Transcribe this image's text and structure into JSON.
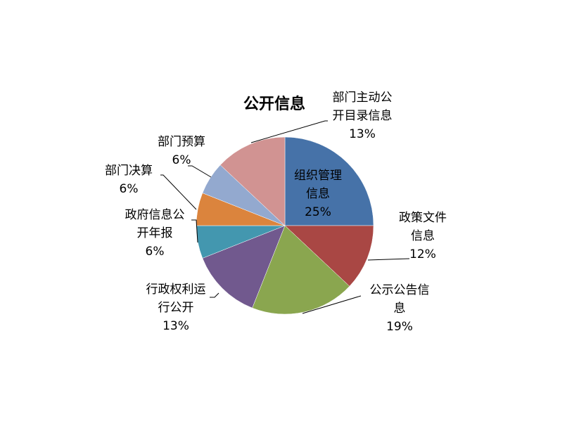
{
  "chart_data": {
    "type": "pie",
    "title": "公开信息",
    "start": "12 o'clock, clockwise",
    "slices": [
      {
        "name": "组织管理信息",
        "value": 25,
        "label": "25%",
        "color": "#4672A8"
      },
      {
        "name": "政策文件信息",
        "value": 12,
        "label": "12%",
        "color": "#A94744"
      },
      {
        "name": "公示公告信息",
        "value": 19,
        "label": "19%",
        "color": "#8AA64F"
      },
      {
        "name": "行政权利运行公开",
        "value": 13,
        "label": "13%",
        "color": "#71598E"
      },
      {
        "name": "政府信息公开年报",
        "value": 6,
        "label": "6%",
        "color": "#4397AF"
      },
      {
        "name": "部门决算",
        "value": 6,
        "label": "6%",
        "color": "#DB843D"
      },
      {
        "name": "部门预算",
        "value": 6,
        "label": "6%",
        "color": "#93A9CF"
      },
      {
        "name": "部门主动公开目录信息",
        "value": 13,
        "label": "13%",
        "color": "#D19392"
      }
    ]
  }
}
